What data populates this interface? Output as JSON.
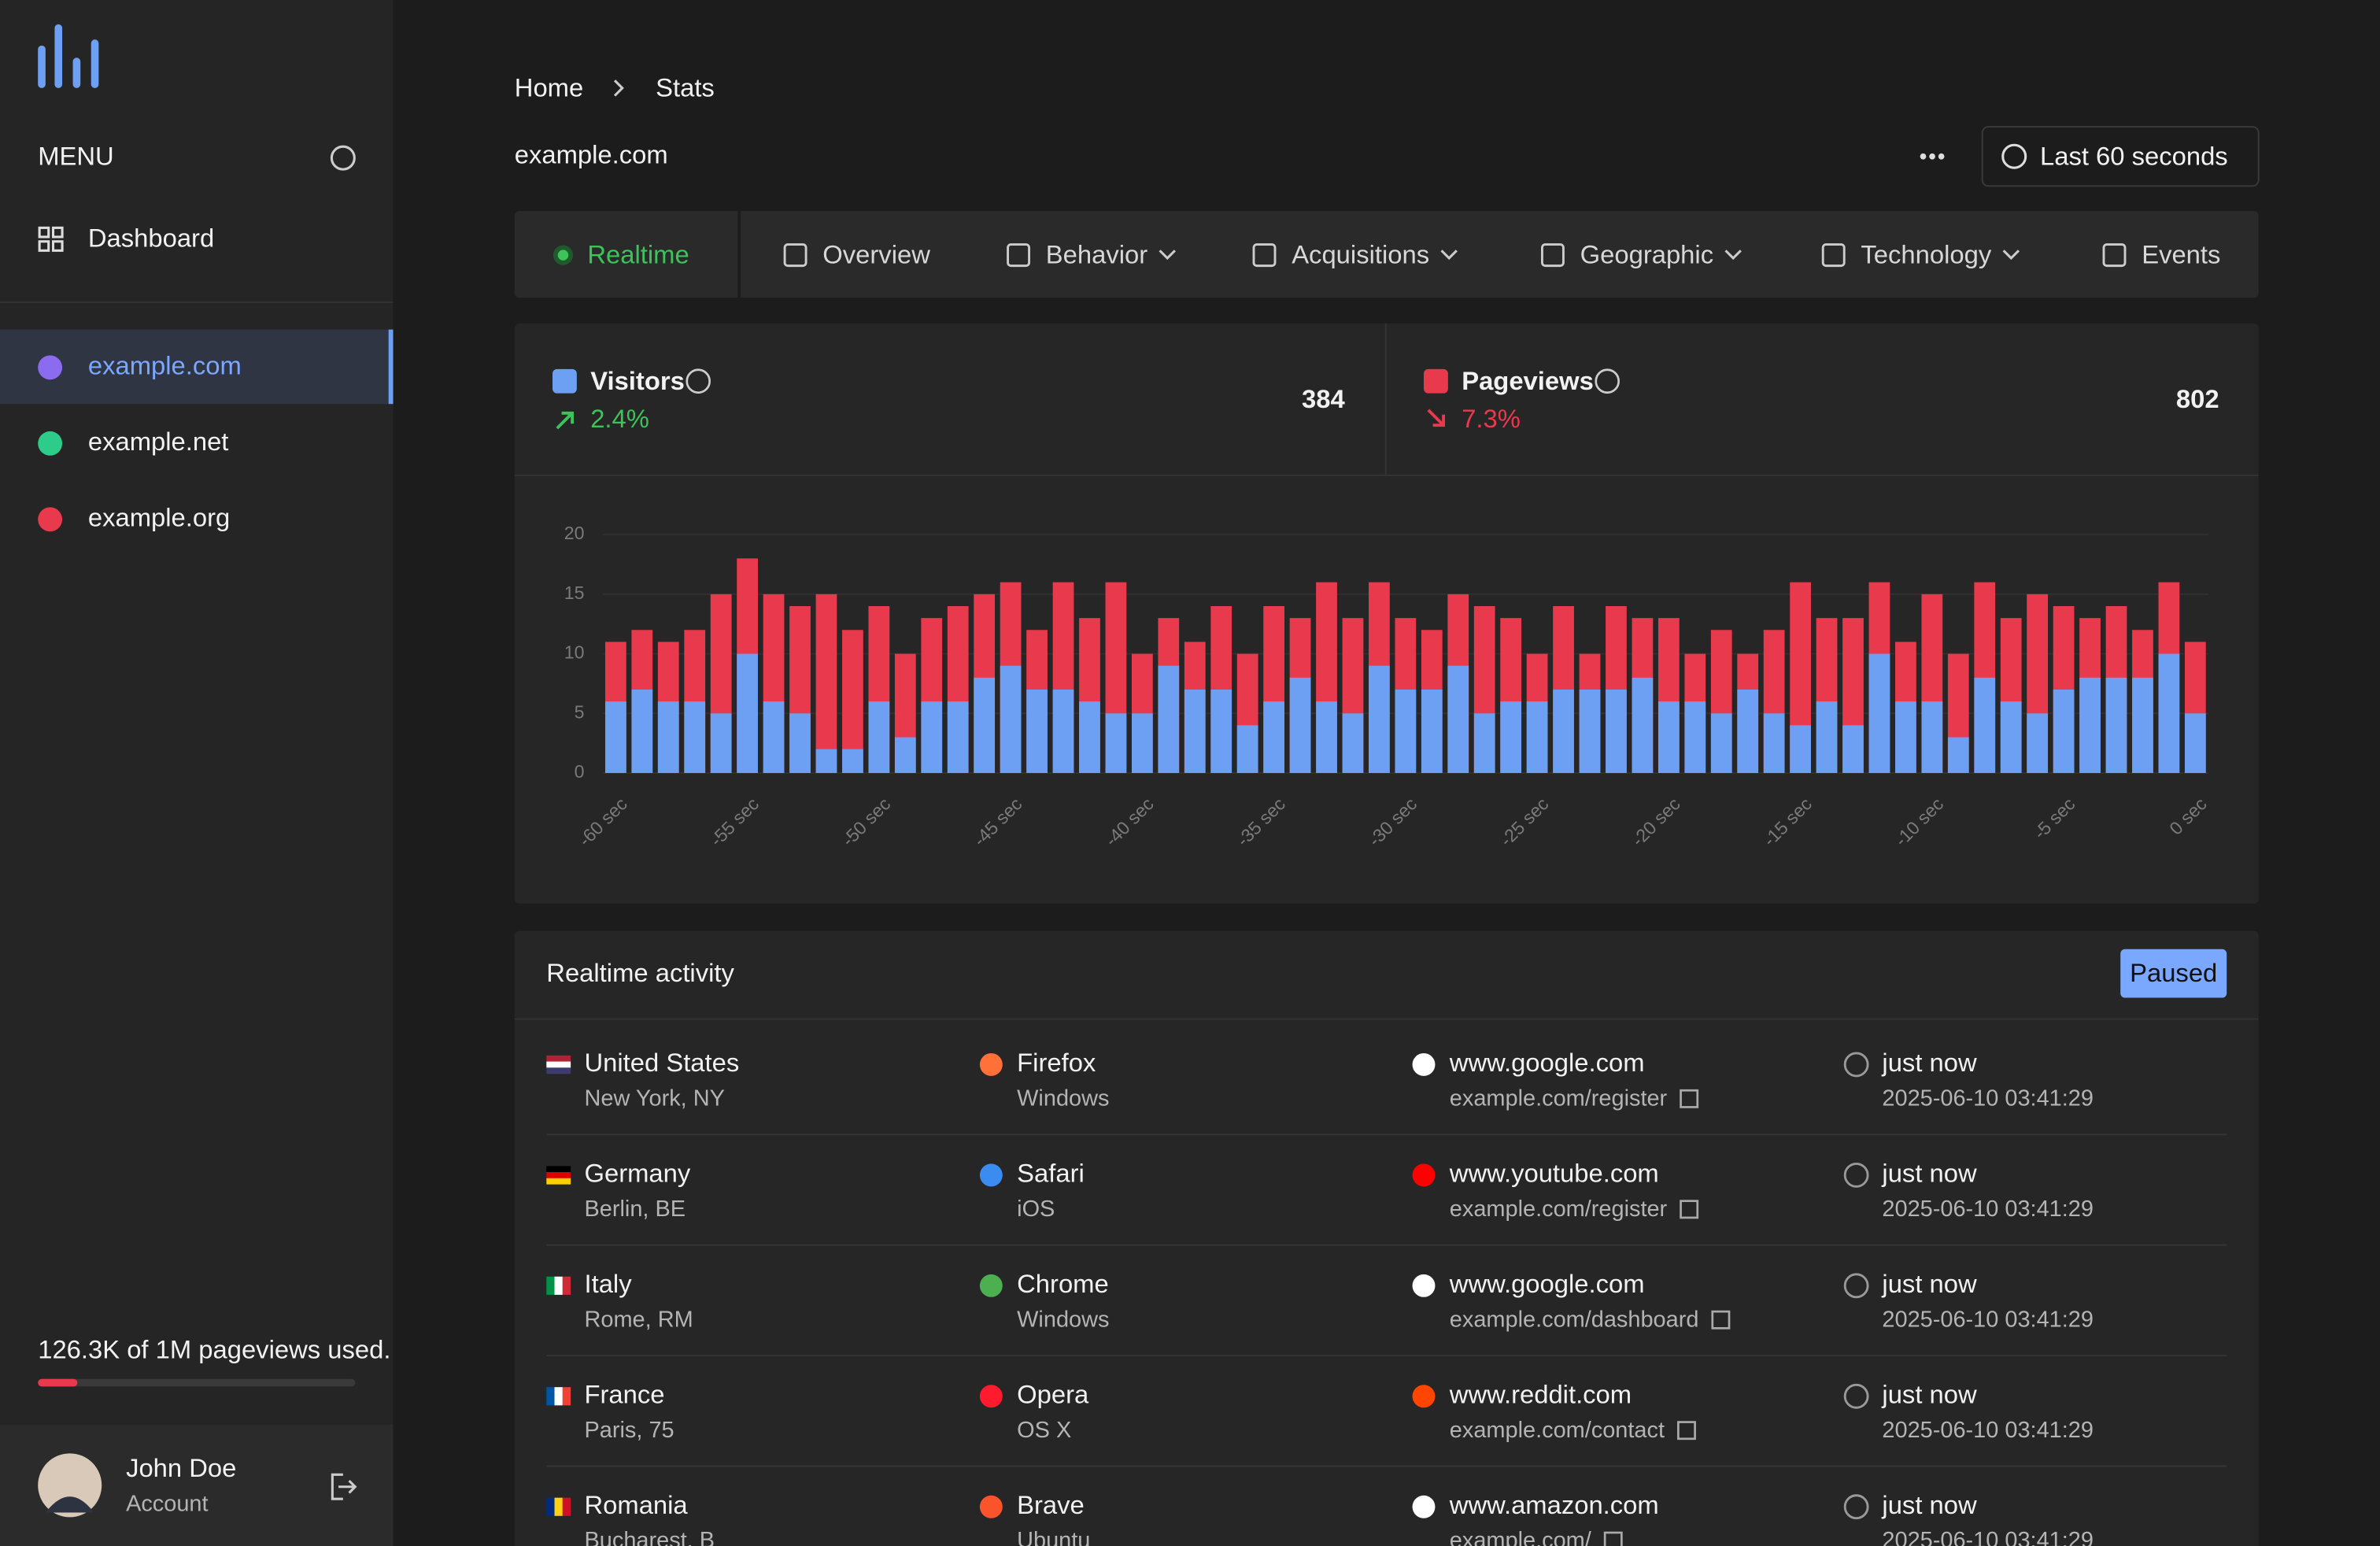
{
  "sidebar": {
    "menu": "MENU",
    "nav": [
      "Dashboard"
    ],
    "sites": [
      "example.com",
      "example.net",
      "example.org"
    ],
    "usage": "126.3K of 1M pageviews used.",
    "user": {
      "name": "John Doe",
      "role": "Account"
    }
  },
  "header": {
    "breadcrumb": [
      "Home",
      "Stats"
    ],
    "title": "example.com",
    "range": "Last 60 seconds"
  },
  "tabs": [
    "Realtime",
    "Overview",
    "Behavior",
    "Acquisitions",
    "Geographic",
    "Technology",
    "Events"
  ],
  "stats": [
    {
      "value": 384,
      "change": "2.4%"
    },
    {
      "value": 802,
      "change": "7.3%"
    }
  ],
  "chart_data": {
    "type": "bar",
    "overlap": true,
    "categories": [
      "-60 sec",
      null,
      null,
      null,
      null,
      "-55 sec",
      null,
      null,
      null,
      null,
      "-50 sec",
      null,
      null,
      null,
      null,
      "-45 sec",
      null,
      null,
      null,
      null,
      "-40 sec",
      null,
      null,
      null,
      null,
      "-35 sec",
      null,
      null,
      null,
      null,
      "-30 sec",
      null,
      null,
      null,
      null,
      "-25 sec",
      null,
      null,
      null,
      null,
      "-20 sec",
      null,
      null,
      null,
      null,
      "-15 sec",
      null,
      null,
      null,
      null,
      "-10 sec",
      null,
      null,
      null,
      null,
      "-5 sec",
      null,
      null,
      null,
      null,
      "0 sec"
    ],
    "series": [
      {
        "name": "Visitors",
        "color": "#6d9ff2",
        "values": [
          6,
          7,
          6,
          6,
          5,
          10,
          6,
          5,
          2,
          2,
          6,
          3,
          6,
          6,
          8,
          9,
          7,
          7,
          6,
          5,
          5,
          9,
          7,
          7,
          4,
          6,
          8,
          6,
          5,
          9,
          7,
          7,
          9,
          5,
          6,
          6,
          7,
          7,
          7,
          8,
          6,
          6,
          5,
          7,
          5,
          4,
          6,
          4,
          10,
          6,
          6,
          3,
          8,
          6,
          5,
          7,
          8,
          8,
          8,
          10,
          5
        ]
      },
      {
        "name": "Pageviews",
        "color": "#e8394d",
        "values": [
          11,
          12,
          11,
          12,
          15,
          18,
          15,
          14,
          15,
          12,
          14,
          10,
          13,
          14,
          15,
          16,
          12,
          16,
          13,
          16,
          10,
          13,
          11,
          14,
          10,
          14,
          13,
          16,
          13,
          16,
          13,
          12,
          15,
          14,
          13,
          10,
          14,
          10,
          14,
          13,
          13,
          10,
          12,
          10,
          12,
          16,
          13,
          13,
          16,
          11,
          15,
          10,
          16,
          13,
          15,
          14,
          13,
          14,
          12,
          16,
          11
        ]
      }
    ],
    "ylim": [
      0,
      20
    ],
    "yticks": [
      0,
      5,
      10,
      15,
      20
    ],
    "grid": true
  },
  "activity": {
    "title": "Realtime activity",
    "status": "Paused",
    "rows": [
      {
        "country": "United States",
        "city": "New York, NY",
        "browser": "Firefox",
        "os": "Windows",
        "referrer": "www.google.com",
        "page": "example.com/register",
        "time": "just now",
        "datetime": "2025-06-10 03:41:29"
      },
      {
        "country": "Germany",
        "city": "Berlin, BE",
        "browser": "Safari",
        "os": "iOS",
        "referrer": "www.youtube.com",
        "page": "example.com/register",
        "time": "just now",
        "datetime": "2025-06-10 03:41:29"
      },
      {
        "country": "Italy",
        "city": "Rome, RM",
        "browser": "Chrome",
        "os": "Windows",
        "referrer": "www.google.com",
        "page": "example.com/dashboard",
        "time": "just now",
        "datetime": "2025-06-10 03:41:29"
      },
      {
        "country": "France",
        "city": "Paris, 75",
        "browser": "Opera",
        "os": "OS X",
        "referrer": "www.reddit.com",
        "page": "example.com/contact",
        "time": "just now",
        "datetime": "2025-06-10 03:41:29"
      },
      {
        "country": "Romania",
        "city": "Bucharest, B",
        "browser": "Brave",
        "os": "Ubuntu",
        "referrer": "www.amazon.com",
        "page": "example.com/",
        "time": "just now",
        "datetime": "2025-06-10 03:41:29"
      }
    ]
  }
}
